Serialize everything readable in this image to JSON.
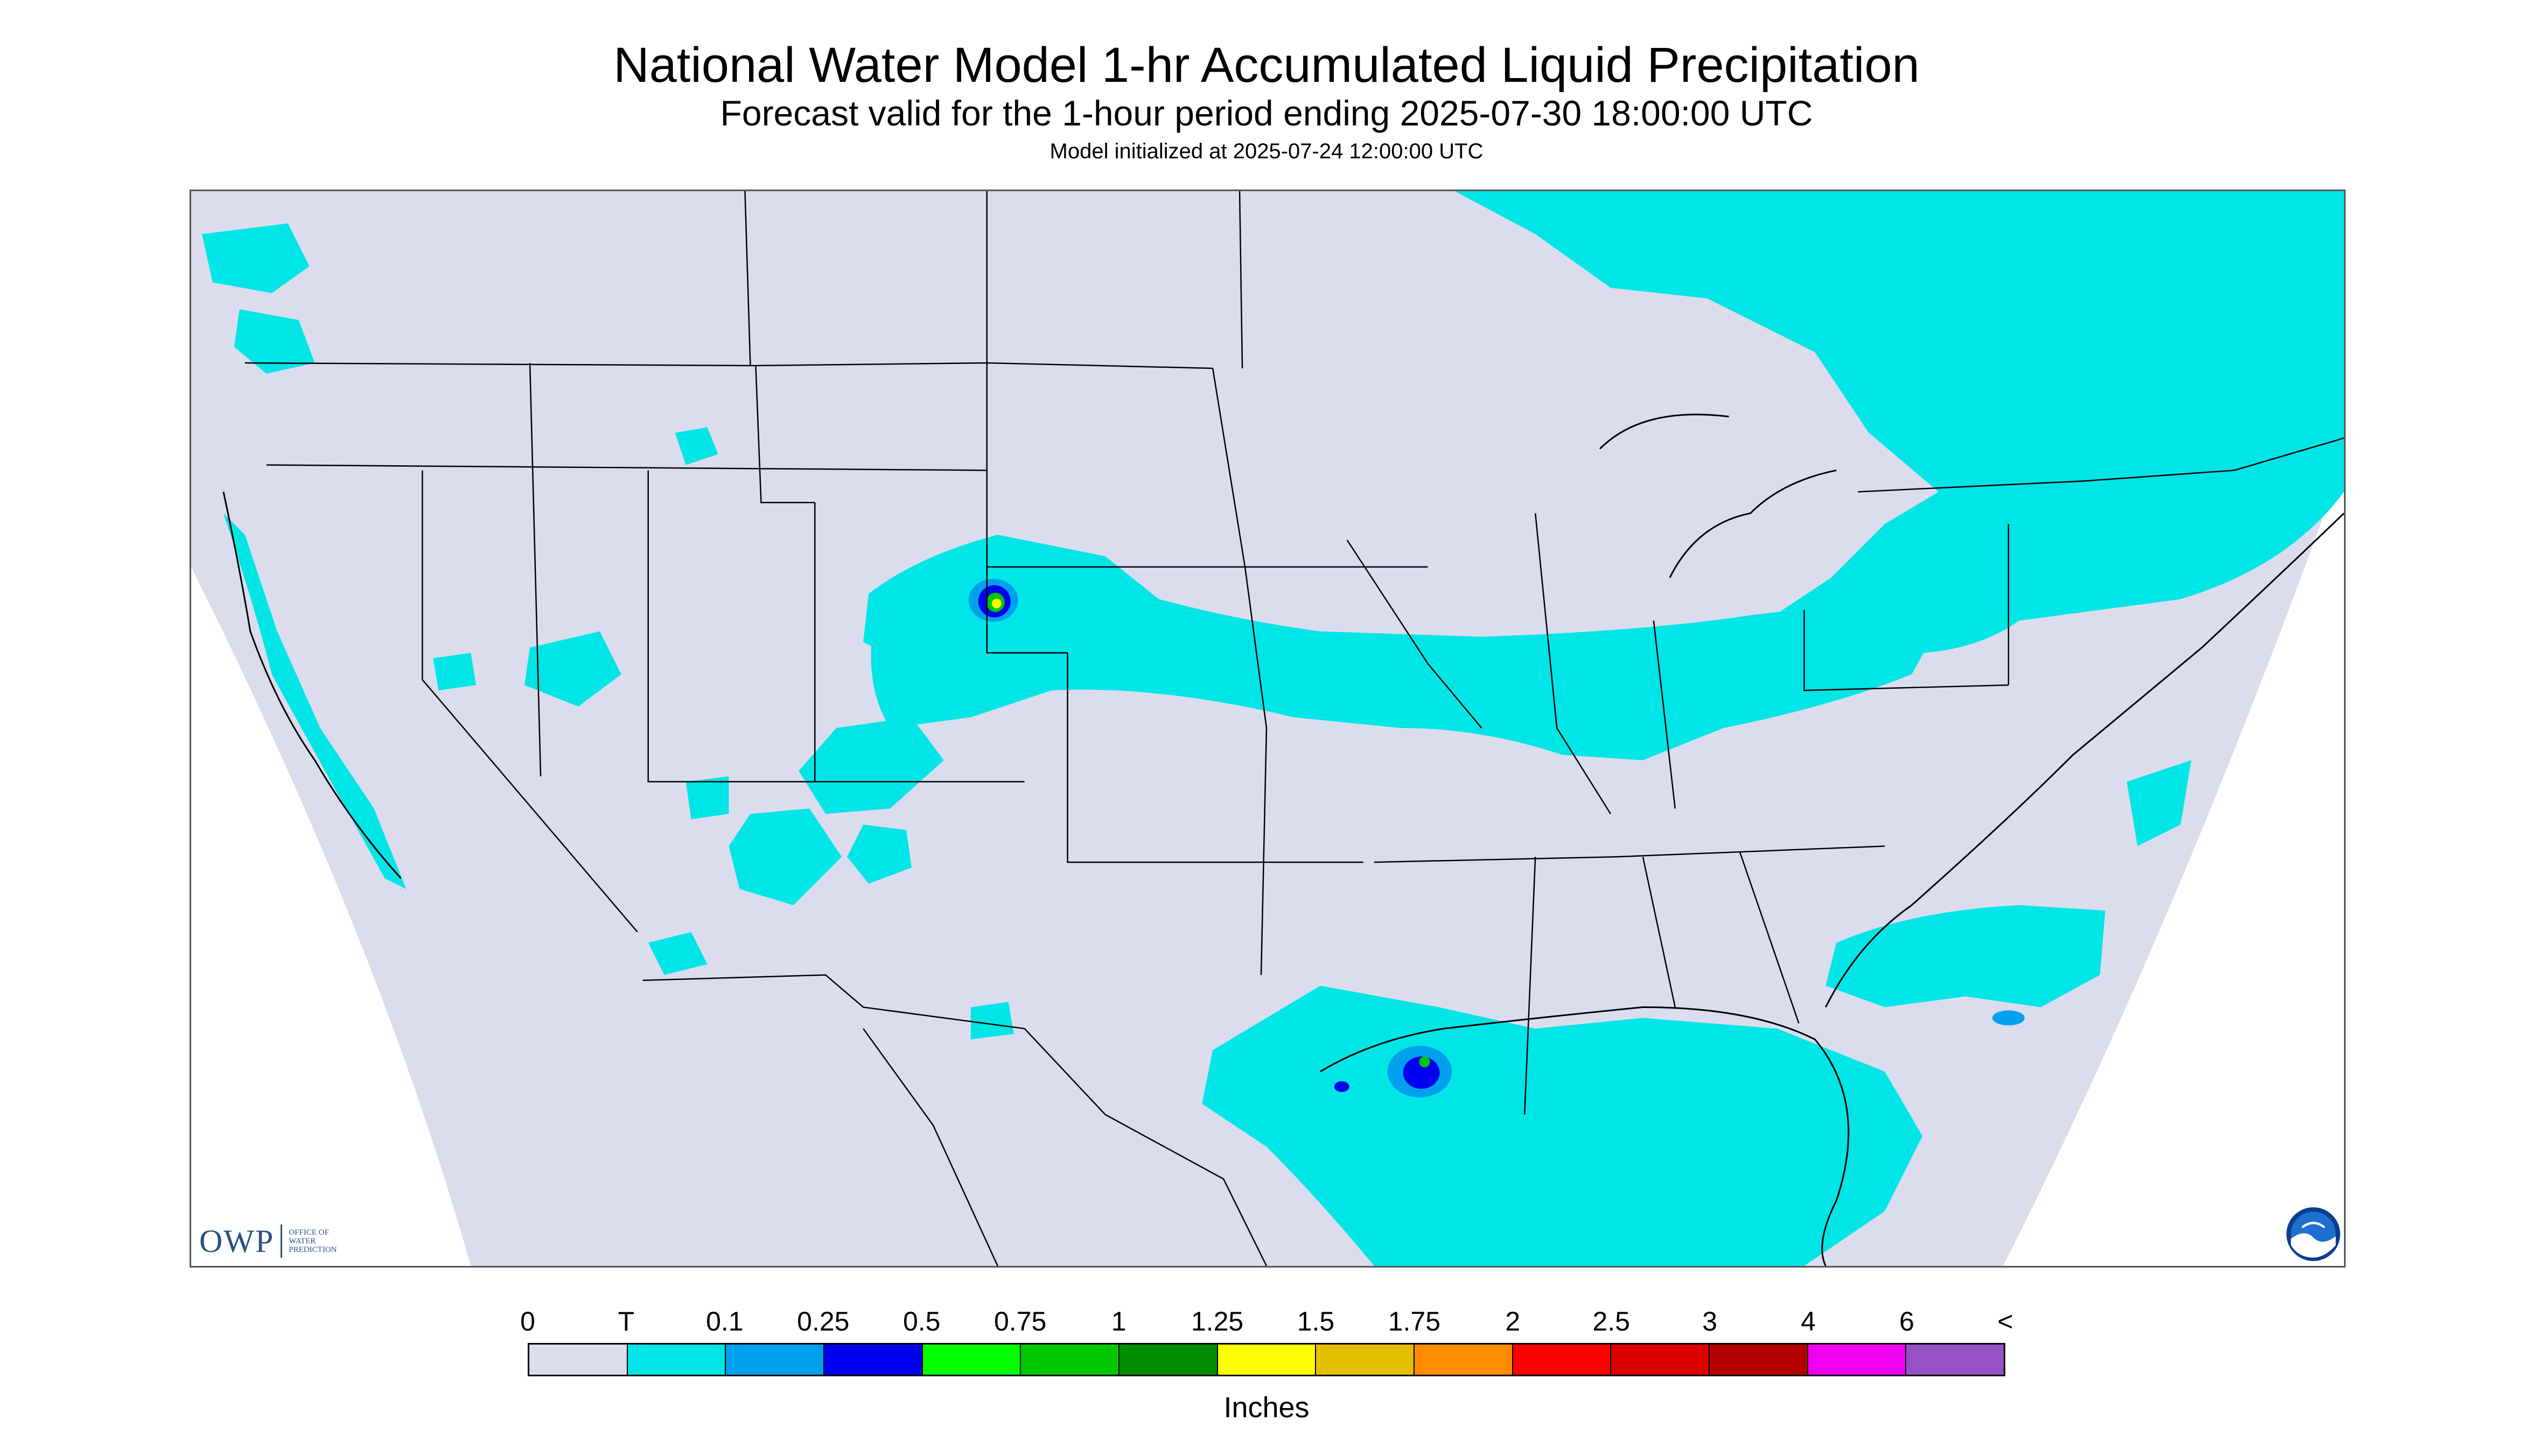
{
  "header": {
    "title": "National Water Model 1-hr Accumulated Liquid Precipitation",
    "subtitle": "Forecast valid for the 1-hour period ending 2025-07-30 18:00:00 UTC",
    "init_line": "Model initialized at 2025-07-24 12:00:00 UTC"
  },
  "map": {
    "background_color": "#dcdcef",
    "outside_domain_color": "#ffffff",
    "boundary_color": "#000000",
    "trace_color": "#00e5e5",
    "icons": [
      "owp-logo",
      "noaa-logo"
    ]
  },
  "logos": {
    "owp_letters": "OWP",
    "owp_text_lines": [
      "Office of",
      "Water",
      "Prediction"
    ]
  },
  "legend": {
    "tick_labels": [
      "0",
      "T",
      "0.1",
      "0.25",
      "0.5",
      "0.75",
      "1",
      "1.25",
      "1.5",
      "1.75",
      "2",
      "2.5",
      "3",
      "4",
      "6",
      "<"
    ],
    "colors": [
      "#dcdcef",
      "#00e5e5",
      "#00a0ee",
      "#0000f0",
      "#00ff00",
      "#00c800",
      "#008c00",
      "#ffff00",
      "#e6be00",
      "#ff8c00",
      "#ff0000",
      "#dc0000",
      "#b40000",
      "#f000f0",
      "#9650c8"
    ],
    "units": "Inches"
  }
}
